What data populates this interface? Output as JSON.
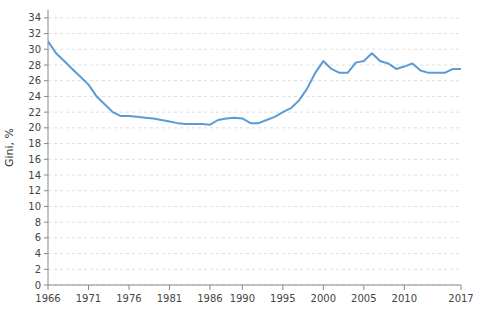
{
  "chart_data": {
    "type": "line",
    "ylabel": "Gini, %",
    "x": [
      1966,
      1967,
      1968,
      1969,
      1970,
      1971,
      1972,
      1973,
      1974,
      1975,
      1976,
      1977,
      1978,
      1979,
      1980,
      1981,
      1982,
      1983,
      1984,
      1985,
      1986,
      1987,
      1988,
      1989,
      1990,
      1991,
      1992,
      1993,
      1994,
      1995,
      1996,
      1997,
      1998,
      1999,
      2000,
      2001,
      2002,
      2003,
      2004,
      2005,
      2006,
      2007,
      2008,
      2009,
      2010,
      2011,
      2012,
      2013,
      2014,
      2015,
      2016,
      2017
    ],
    "values": [
      31.0,
      29.5,
      28.5,
      27.5,
      26.5,
      25.5,
      24.0,
      23.0,
      22.0,
      21.5,
      21.5,
      21.4,
      21.3,
      21.2,
      21.0,
      20.8,
      20.6,
      20.5,
      20.5,
      20.5,
      20.4,
      21.0,
      21.2,
      21.3,
      21.2,
      20.6,
      20.6,
      21.0,
      21.4,
      22.0,
      22.5,
      23.5,
      25.0,
      27.0,
      28.5,
      27.5,
      27.0,
      27.0,
      28.3,
      28.5,
      29.5,
      28.5,
      28.2,
      27.5,
      27.8,
      28.2,
      27.3,
      27.0,
      27.0,
      27.0,
      27.5,
      27.5
    ],
    "color": "#5B9BD5",
    "xlim": [
      1966,
      2017
    ],
    "xticks": [
      1966,
      1971,
      1976,
      1981,
      1986,
      1990,
      1995,
      2000,
      2005,
      2010,
      2017
    ],
    "ylim": [
      0,
      35
    ],
    "yticks": [
      0,
      2,
      4,
      6,
      8,
      10,
      12,
      14,
      16,
      18,
      20,
      22,
      24,
      26,
      28,
      30,
      32,
      34
    ],
    "grid": true
  }
}
